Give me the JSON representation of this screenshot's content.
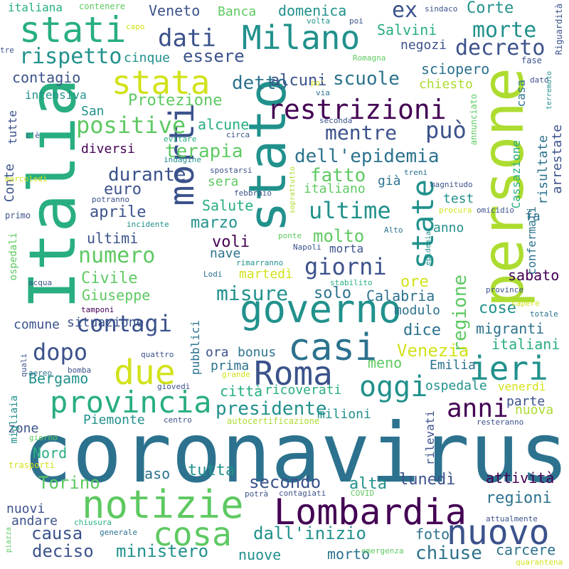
{
  "palette": {
    "c1": "#440154",
    "c2": "#3b528b",
    "c3": "#2c728e",
    "c4": "#21918c",
    "c5": "#28ae80",
    "c6": "#5ec962",
    "c7": "#addc30",
    "c8": "#d2e21b"
  },
  "words": [
    {
      "text": "coronavirus",
      "color": "c3",
      "weight": 1.0
    },
    {
      "text": "Italia",
      "color": "c5",
      "weight": 0.78
    },
    {
      "text": "persone",
      "color": "c7",
      "weight": 0.78
    },
    {
      "text": "stato",
      "color": "c4",
      "weight": 0.72
    },
    {
      "text": "morti",
      "color": "c2",
      "weight": 0.55
    },
    {
      "text": "notizie",
      "color": "c6",
      "weight": 0.5
    },
    {
      "text": "Lombardia",
      "color": "c1",
      "weight": 0.5
    },
    {
      "text": "casi",
      "color": "c3",
      "weight": 0.48
    },
    {
      "text": "governo",
      "color": "c4",
      "weight": 0.46
    },
    {
      "text": "stati",
      "color": "c5",
      "weight": 0.45
    },
    {
      "text": "Milano",
      "color": "c4",
      "weight": 0.45
    },
    {
      "text": "due",
      "color": "c8",
      "weight": 0.45
    },
    {
      "text": "Roma",
      "color": "c2",
      "weight": 0.45
    },
    {
      "text": "nuovo",
      "color": "c2",
      "weight": 0.44
    },
    {
      "text": "cosa",
      "color": "c6",
      "weight": 0.44
    },
    {
      "text": "ieri",
      "color": "c4",
      "weight": 0.42
    },
    {
      "text": "stata",
      "color": "c8",
      "weight": 0.4
    },
    {
      "text": "state",
      "color": "c4",
      "weight": 0.4
    },
    {
      "text": "provincia",
      "color": "c5",
      "weight": 0.38
    },
    {
      "text": "oggi",
      "color": "c4",
      "weight": 0.38
    },
    {
      "text": "restrizioni",
      "color": "c1",
      "weight": 0.36
    },
    {
      "text": "anni",
      "color": "c1",
      "weight": 0.34
    },
    {
      "text": "dati",
      "color": "c2",
      "weight": 0.34
    },
    {
      "text": "giorni",
      "color": "c2",
      "weight": 0.3
    },
    {
      "text": "contagi",
      "color": "c2",
      "weight": 0.3
    },
    {
      "text": "dopo",
      "color": "c2",
      "weight": 0.3
    },
    {
      "text": "positive",
      "color": "c6",
      "weight": 0.28
    },
    {
      "text": "può",
      "color": "c2",
      "weight": 0.28
    },
    {
      "text": "ultime",
      "color": "c4",
      "weight": 0.28
    },
    {
      "text": "numero",
      "color": "c6",
      "weight": 0.27
    },
    {
      "text": "morte",
      "color": "c4",
      "weight": 0.26
    },
    {
      "text": "decreto",
      "color": "c2",
      "weight": 0.26
    },
    {
      "text": "rispetto",
      "color": "c4",
      "weight": 0.26
    },
    {
      "text": "misure",
      "color": "c4",
      "weight": 0.26
    },
    {
      "text": "dell'epidemia",
      "color": "c3",
      "weight": 0.25
    },
    {
      "text": "mentre",
      "color": "c2",
      "weight": 0.25
    },
    {
      "text": "presidente",
      "color": "c4",
      "weight": 0.25
    },
    {
      "text": "regione",
      "color": "c6",
      "weight": 0.25
    },
    {
      "text": "scuole",
      "color": "c3",
      "weight": 0.24
    },
    {
      "text": "detto",
      "color": "c3",
      "weight": 0.24
    },
    {
      "text": "durante",
      "color": "c2",
      "weight": 0.24
    },
    {
      "text": "fatto",
      "color": "c6",
      "weight": 0.24
    },
    {
      "text": "terapia",
      "color": "c6",
      "weight": 0.24
    },
    {
      "text": "essere",
      "color": "c2",
      "weight": 0.23
    },
    {
      "text": "secondo",
      "color": "c2",
      "weight": 0.23
    },
    {
      "text": "deciso",
      "color": "c2",
      "weight": 0.23
    },
    {
      "text": "causa",
      "color": "c2",
      "weight": 0.23
    },
    {
      "text": "chiuse",
      "color": "c3",
      "weight": 0.23
    },
    {
      "text": "molto",
      "color": "c6",
      "weight": 0.22
    },
    {
      "text": "dall'inizio",
      "color": "c4",
      "weight": 0.22
    },
    {
      "text": "ex",
      "color": "c2",
      "weight": 0.22
    },
    {
      "text": "ministero",
      "color": "c4",
      "weight": 0.21
    },
    {
      "text": "Venezia",
      "color": "c8",
      "weight": 0.21
    },
    {
      "text": "lunedì",
      "color": "c2",
      "weight": 0.2
    },
    {
      "text": "regioni",
      "color": "c3",
      "weight": 0.2
    },
    {
      "text": "Torino",
      "color": "c6",
      "weight": 0.2
    },
    {
      "text": "solo",
      "color": "c3",
      "weight": 0.2
    },
    {
      "text": "cose",
      "color": "c4",
      "weight": 0.2
    },
    {
      "text": "alcuni",
      "color": "c2",
      "weight": 0.2
    },
    {
      "text": "dice",
      "color": "c3",
      "weight": 0.2
    },
    {
      "text": "Protezione",
      "color": "c6",
      "weight": 0.19
    },
    {
      "text": "Civile",
      "color": "c6",
      "weight": 0.19
    },
    {
      "text": "contagio",
      "color": "c2",
      "weight": 0.19
    },
    {
      "text": "aprile",
      "color": "c2",
      "weight": 0.19
    },
    {
      "text": "euro",
      "color": "c2",
      "weight": 0.18
    },
    {
      "text": "marzo",
      "color": "c4",
      "weight": 0.18
    },
    {
      "text": "Salvini",
      "color": "c5",
      "weight": 0.18
    },
    {
      "text": "domenica",
      "color": "c4",
      "weight": 0.18
    },
    {
      "text": "Corte",
      "color": "c4",
      "weight": 0.18
    },
    {
      "text": "Veneto",
      "color": "c2",
      "weight": 0.17
    },
    {
      "text": "sciopero",
      "color": "c3",
      "weight": 0.17
    },
    {
      "text": "Giuseppe",
      "color": "c6",
      "weight": 0.17
    },
    {
      "text": "ultimi",
      "color": "c2",
      "weight": 0.17
    },
    {
      "text": "alcune",
      "color": "c5",
      "weight": 0.17
    },
    {
      "text": "voli",
      "color": "c1",
      "weight": 0.17
    },
    {
      "text": "ore",
      "color": "c8",
      "weight": 0.17
    },
    {
      "text": "Calabria",
      "color": "c3",
      "weight": 0.17
    },
    {
      "text": "meno",
      "color": "c6",
      "weight": 0.17
    },
    {
      "text": "Bergamo",
      "color": "c4",
      "weight": 0.17
    },
    {
      "text": "tutta",
      "color": "c4",
      "weight": 0.17
    },
    {
      "text": "attività",
      "color": "c1",
      "weight": 0.17
    },
    {
      "text": "alta",
      "color": "c4",
      "weight": 0.17
    },
    {
      "text": "migranti",
      "color": "c3",
      "weight": 0.16
    },
    {
      "text": "sabato",
      "color": "c1",
      "weight": 0.16
    },
    {
      "text": "italiani",
      "color": "c5",
      "weight": 0.16
    },
    {
      "text": "Salute",
      "color": "c5",
      "weight": 0.16
    },
    {
      "text": "situazione",
      "color": "c2",
      "weight": 0.16
    },
    {
      "text": "Emilia",
      "color": "c3",
      "weight": 0.16
    },
    {
      "text": "ospedale",
      "color": "c4",
      "weight": 0.16
    },
    {
      "text": "carcere",
      "color": "c3",
      "weight": 0.16
    },
    {
      "text": "foto",
      "color": "c3",
      "weight": 0.16
    },
    {
      "text": "morto",
      "color": "c3",
      "weight": 0.16
    },
    {
      "text": "città",
      "color": "c5",
      "weight": 0.15
    },
    {
      "text": "ricoverati",
      "color": "c5",
      "weight": 0.15
    },
    {
      "text": "diversi",
      "color": "c1",
      "weight": 0.15
    },
    {
      "text": "Conte",
      "color": "c2",
      "weight": 0.15
    },
    {
      "text": "caso",
      "color": "c3",
      "weight": 0.15
    },
    {
      "text": "Piemonte",
      "color": "c4",
      "weight": 0.15
    },
    {
      "text": "Nord",
      "color": "c5",
      "weight": 0.15
    },
    {
      "text": "nuovi",
      "color": "c2",
      "weight": 0.15
    },
    {
      "text": "andare",
      "color": "c2",
      "weight": 0.15
    },
    {
      "text": "nuove",
      "color": "c4",
      "weight": 0.15
    },
    {
      "text": "negozi",
      "color": "c2",
      "weight": 0.15
    },
    {
      "text": "Banca",
      "color": "c6",
      "weight": 0.15
    },
    {
      "text": "San",
      "color": "c4",
      "weight": 0.15
    },
    {
      "text": "cinque",
      "color": "c4",
      "weight": 0.14
    },
    {
      "text": "italiano",
      "color": "c6",
      "weight": 0.14
    },
    {
      "text": "anno",
      "color": "c4",
      "weight": 0.14
    },
    {
      "text": "test",
      "color": "c4",
      "weight": 0.14
    },
    {
      "text": "modulo",
      "color": "c3",
      "weight": 0.14
    },
    {
      "text": "comune",
      "color": "c2",
      "weight": 0.14
    },
    {
      "text": "parte",
      "color": "c2",
      "weight": 0.14
    },
    {
      "text": "nuova",
      "color": "c7",
      "weight": 0.14
    },
    {
      "text": "venerdì",
      "color": "c8",
      "weight": 0.14
    },
    {
      "text": "martedì",
      "color": "c8",
      "weight": 0.14
    },
    {
      "text": "milioni",
      "color": "c4",
      "weight": 0.14
    },
    {
      "text": "bonus",
      "color": "c3",
      "weight": 0.14
    },
    {
      "text": "prima",
      "color": "c3",
      "weight": 0.14
    },
    {
      "text": "ora",
      "color": "c2",
      "weight": 0.14
    },
    {
      "text": "zone",
      "color": "c2",
      "weight": 0.14
    },
    {
      "text": "morta",
      "color": "c2",
      "weight": 0.14
    },
    {
      "text": "nave",
      "color": "c3",
      "weight": 0.14
    },
    {
      "text": "sera",
      "color": "c6",
      "weight": 0.14
    },
    {
      "text": "già",
      "color": "c3",
      "weight": 0.14
    },
    {
      "text": "chiesto",
      "color": "c7",
      "weight": 0.13
    },
    {
      "text": "intensiva",
      "color": "c4",
      "weight": 0.13
    },
    {
      "text": "tutte",
      "color": "c2",
      "weight": 0.13
    },
    {
      "text": "fa",
      "color": "c3",
      "weight": 0.13
    },
    {
      "text": "risultate",
      "color": "c3",
      "weight": 0.13
    },
    {
      "text": "arrestate",
      "color": "c2",
      "weight": 0.13
    },
    {
      "text": "casa",
      "color": "c3",
      "weight": 0.13
    },
    {
      "text": "fase",
      "color": "c2",
      "weight": 0.12
    },
    {
      "text": "confermati",
      "color": "c3",
      "weight": 0.12
    },
    {
      "text": "Cassazione",
      "color": "c5",
      "weight": 0.12
    },
    {
      "text": "ospedali",
      "color": "c6",
      "weight": 0.12
    },
    {
      "text": "pubblici",
      "color": "c3",
      "weight": 0.12
    },
    {
      "text": "migliaia",
      "color": "c4",
      "weight": 0.12
    },
    {
      "text": "rilevati",
      "color": "c2",
      "weight": 0.12
    },
    {
      "text": "Riguardità",
      "color": "c2",
      "weight": 0.11
    },
    {
      "text": "italiana",
      "color": "c5",
      "weight": 0.11
    },
    {
      "text": "contenere",
      "color": "c6",
      "weight": 0.1
    },
    {
      "text": "sindaco",
      "color": "c2",
      "weight": 0.1
    },
    {
      "text": "capo",
      "color": "c8",
      "weight": 0.1
    },
    {
      "text": "volta",
      "color": "c4",
      "weight": 0.1
    },
    {
      "text": "poi",
      "color": "c2",
      "weight": 0.1
    },
    {
      "text": "tre",
      "color": "c2",
      "weight": 0.1
    },
    {
      "text": "Romagna",
      "color": "c6",
      "weight": 0.1
    },
    {
      "text": "po'",
      "color": "c8",
      "weight": 0.1
    },
    {
      "text": "via",
      "color": "c3",
      "weight": 0.1
    },
    {
      "text": "dato",
      "color": "c2",
      "weight": 0.1
    },
    {
      "text": "terremoto",
      "color": "c4",
      "weight": 0.1
    },
    {
      "text": "c'è",
      "color": "c2",
      "weight": 0.1
    },
    {
      "text": "evitare",
      "color": "c5",
      "weight": 0.1
    },
    {
      "text": "indagine",
      "color": "c4",
      "weight": 0.1
    },
    {
      "text": "circa",
      "color": "c2",
      "weight": 0.1
    },
    {
      "text": "seconda",
      "color": "c2",
      "weight": 0.1
    },
    {
      "text": "annunciato",
      "color": "c6",
      "weight": 0.1
    },
    {
      "text": "mercoledì",
      "color": "c8",
      "weight": 0.1
    },
    {
      "text": "spostarsi",
      "color": "c2",
      "weight": 0.1
    },
    {
      "text": "treni",
      "color": "c3",
      "weight": 0.1
    },
    {
      "text": "magnitudo",
      "color": "c2",
      "weight": 0.1
    },
    {
      "text": "febbraio",
      "color": "c2",
      "weight": 0.1
    },
    {
      "text": "potranno",
      "color": "c2",
      "weight": 0.1
    },
    {
      "text": "primo",
      "color": "c2",
      "weight": 0.1
    },
    {
      "text": "incidente",
      "color": "c4",
      "weight": 0.1
    },
    {
      "text": "procura",
      "color": "c8",
      "weight": 0.1
    },
    {
      "text": "omicidio",
      "color": "c2",
      "weight": 0.1
    },
    {
      "text": "soprattutto",
      "color": "c7",
      "weight": 0.1
    },
    {
      "text": "Alto",
      "color": "c3",
      "weight": 0.1
    },
    {
      "text": "ponte",
      "color": "c6",
      "weight": 0.1
    },
    {
      "text": "Napoli",
      "color": "c2",
      "weight": 0.1
    },
    {
      "text": "rimarranno",
      "color": "c4",
      "weight": 0.1
    },
    {
      "text": "Lodi",
      "color": "c3",
      "weight": 0.1
    },
    {
      "text": "epidemia",
      "color": "c4",
      "weight": 0.1
    },
    {
      "text": "province",
      "color": "c2",
      "weight": 0.1
    },
    {
      "text": "sapere",
      "color": "c8",
      "weight": 0.1
    },
    {
      "text": "totale",
      "color": "c3",
      "weight": 0.1
    },
    {
      "text": "acqua",
      "color": "c2",
      "weight": 0.1
    },
    {
      "text": "stabilito",
      "color": "c5",
      "weight": 0.1
    },
    {
      "text": "tamponi",
      "color": "c1",
      "weight": 0.1
    },
    {
      "text": "quali",
      "color": "c2",
      "weight": 0.1
    },
    {
      "text": "aereo",
      "color": "c3",
      "weight": 0.1
    },
    {
      "text": "quattro",
      "color": "c2",
      "weight": 0.1
    },
    {
      "text": "bomba",
      "color": "c2",
      "weight": 0.1
    },
    {
      "text": "giovedì",
      "color": "c2",
      "weight": 0.1
    },
    {
      "text": "grande",
      "color": "c8",
      "weight": 0.1
    },
    {
      "text": "centro",
      "color": "c2",
      "weight": 0.1
    },
    {
      "text": "autocertificazione",
      "color": "c7",
      "weight": 0.1
    },
    {
      "text": "resteranno",
      "color": "c2",
      "weight": 0.1
    },
    {
      "text": "giorno",
      "color": "c6",
      "weight": 0.1
    },
    {
      "text": "trasporti",
      "color": "c8",
      "weight": 0.1
    },
    {
      "text": "potrà",
      "color": "c2",
      "weight": 0.1
    },
    {
      "text": "contagiati",
      "color": "c2",
      "weight": 0.1
    },
    {
      "text": "COVID",
      "color": "c6",
      "weight": 0.1
    },
    {
      "text": "attualmente",
      "color": "c2",
      "weight": 0.1
    },
    {
      "text": "chiusura",
      "color": "c5",
      "weight": 0.1
    },
    {
      "text": "generale",
      "color": "c3",
      "weight": 0.1
    },
    {
      "text": "piazza",
      "color": "c6",
      "weight": 0.1
    },
    {
      "text": "emergenza",
      "color": "c6",
      "weight": 0.1
    },
    {
      "text": "quarantena",
      "color": "c8",
      "weight": 0.1
    }
  ]
}
